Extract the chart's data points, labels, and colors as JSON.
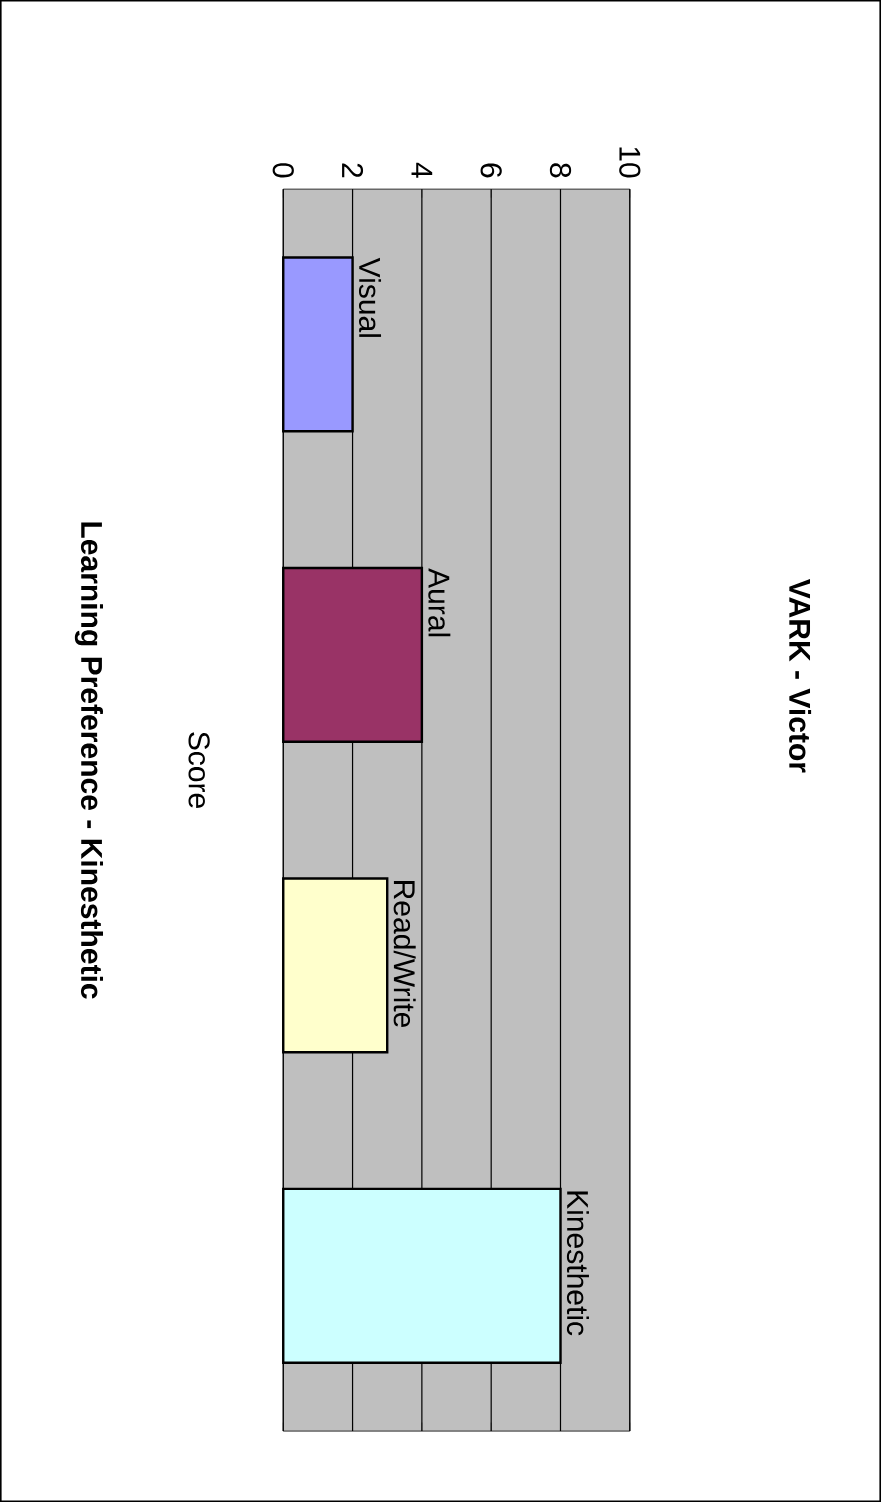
{
  "chart_data": {
    "type": "bar",
    "orientation": "horizontal",
    "title": "VARK - Victor",
    "ylabel": "Score",
    "annotations": [
      "Learning Preference - Kinesthetic"
    ],
    "categories": [
      "Visual",
      "Aural",
      "Read/Write",
      "Kinesthetic"
    ],
    "values": [
      2,
      4,
      3,
      8
    ],
    "colors": [
      "#9999ff",
      "#993366",
      "#ffffcc",
      "#ccffff"
    ],
    "xlim": [
      0,
      10
    ],
    "xticks": [
      0,
      2,
      4,
      6,
      8,
      10
    ],
    "grid": "x"
  }
}
